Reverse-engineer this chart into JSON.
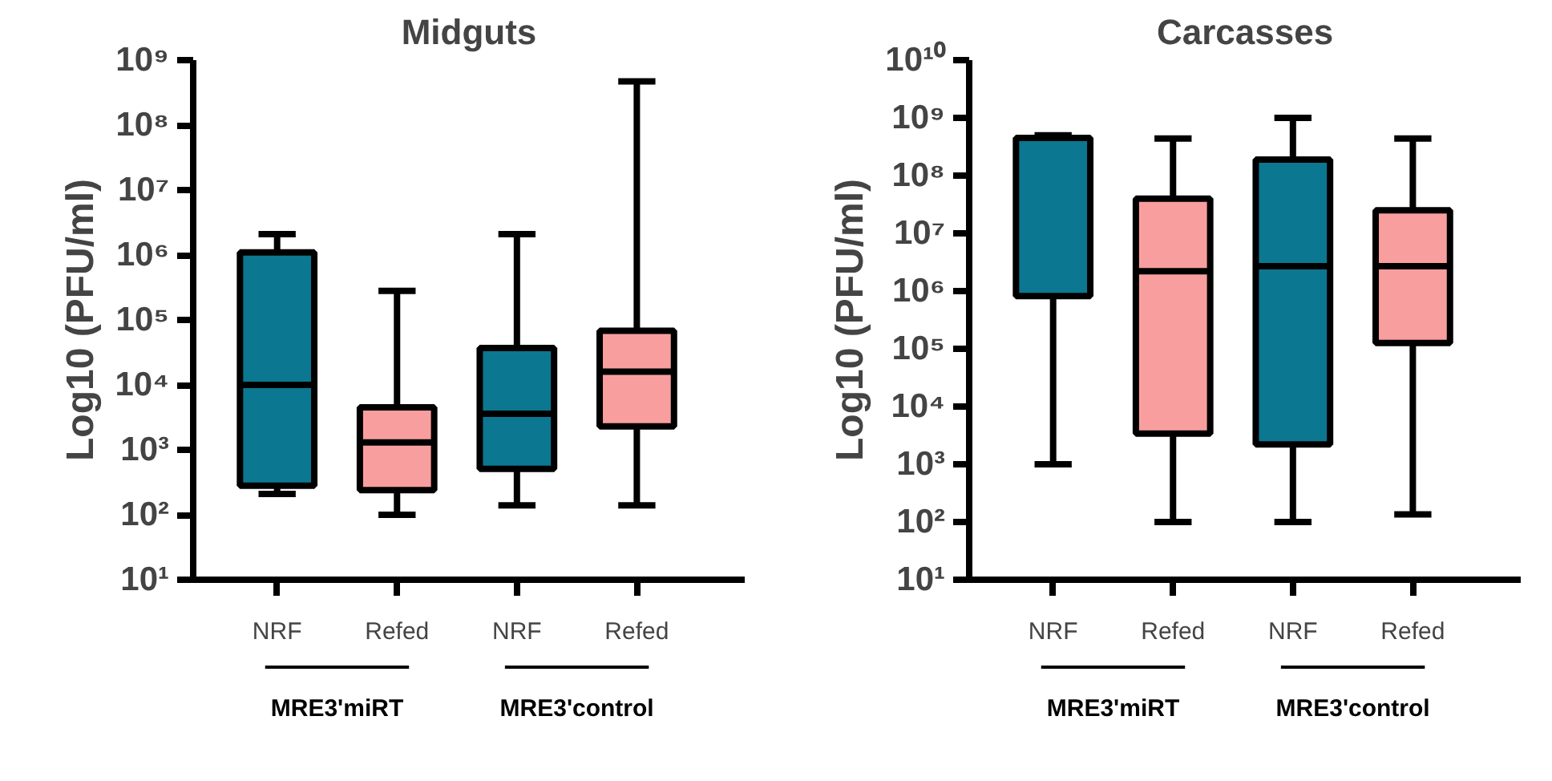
{
  "chart_data": [
    {
      "type": "box",
      "title": "Midguts",
      "ylabel": "Log10 (PFU/ml)",
      "categories": [
        "NRF",
        "Refed",
        "NRF",
        "Refed"
      ],
      "colors": [
        "#0b7790",
        "#f99e9e",
        "#0b7790",
        "#f99e9e"
      ],
      "boxes": [
        {
          "low": 210,
          "q1": 280,
          "median": 10000,
          "q3": 1100000,
          "high": 2100000
        },
        {
          "low": 100,
          "q1": 240,
          "median": 1300,
          "q3": 4500,
          "high": 280000
        },
        {
          "low": 140,
          "q1": 510,
          "median": 3600,
          "q3": 37000,
          "high": 2100000
        },
        {
          "low": 140,
          "q1": 2300,
          "median": 16000,
          "q3": 68000,
          "high": 470000000
        }
      ],
      "log": true,
      "grid": false,
      "ylim": [
        10,
        1000000000
      ],
      "yticks": [
        {
          "value": 10,
          "label": "10¹"
        },
        {
          "value": 100,
          "label": "10²"
        },
        {
          "value": 1000,
          "label": "10³"
        },
        {
          "value": 10000,
          "label": "10⁴"
        },
        {
          "value": 100000,
          "label": "10⁵"
        },
        {
          "value": 1000000,
          "label": "10⁶"
        },
        {
          "value": 10000000,
          "label": "10⁷"
        },
        {
          "value": 100000000,
          "label": "10⁸"
        },
        {
          "value": 1000000000,
          "label": "10⁹"
        }
      ],
      "annotations": [
        "MRE3'miRT",
        "MRE3'control"
      ]
    },
    {
      "type": "box",
      "title": "Carcasses",
      "ylabel": "Log10 (PFU/ml)",
      "categories": [
        "NRF",
        "Refed",
        "NRF",
        "Refed"
      ],
      "colors": [
        "#0b7790",
        "#f99e9e",
        "#0b7790",
        "#f99e9e"
      ],
      "boxes": [
        {
          "low": 1000,
          "q1": 820000,
          "median": 450000000,
          "q3": 450000000,
          "high": 500000000
        },
        {
          "low": 100,
          "q1": 3400,
          "median": 2200000,
          "q3": 40000000,
          "high": 440000000
        },
        {
          "low": 100,
          "q1": 2200,
          "median": 2700000,
          "q3": 190000000,
          "high": 1000000000
        },
        {
          "low": 135,
          "q1": 126000,
          "median": 2700000,
          "q3": 25000000,
          "high": 440000000
        }
      ],
      "log": true,
      "grid": false,
      "ylim": [
        10,
        10000000000
      ],
      "yticks": [
        {
          "value": 10,
          "label": "10¹"
        },
        {
          "value": 100,
          "label": "10²"
        },
        {
          "value": 1000,
          "label": "10³"
        },
        {
          "value": 10000,
          "label": "10⁴"
        },
        {
          "value": 100000,
          "label": "10⁵"
        },
        {
          "value": 1000000,
          "label": "10⁶"
        },
        {
          "value": 10000000,
          "label": "10⁷"
        },
        {
          "value": 100000000,
          "label": "10⁸"
        },
        {
          "value": 1000000000,
          "label": "10⁹"
        },
        {
          "value": 10000000000,
          "label": "10¹⁰"
        }
      ],
      "annotations": [
        "MRE3'miRT",
        "MRE3'control"
      ]
    }
  ]
}
